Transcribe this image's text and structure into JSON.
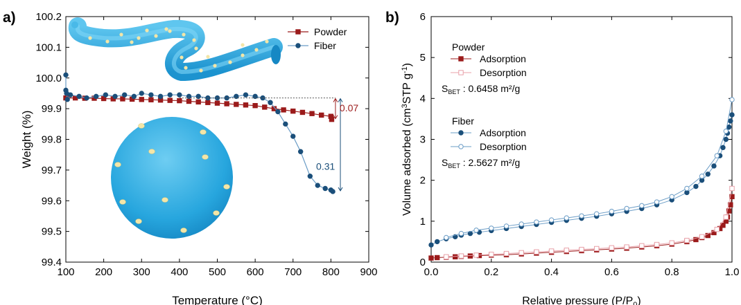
{
  "chart_data": [
    {
      "panel_label": "a)",
      "type": "line",
      "xlabel": "Temperature (°C)",
      "ylabel": "Weight (%)",
      "xlim": [
        100,
        900
      ],
      "ylim": [
        99.4,
        100.2
      ],
      "xticks": [
        100,
        200,
        300,
        400,
        500,
        600,
        700,
        800,
        900
      ],
      "yticks": [
        "99.4",
        "99.5",
        "99.6",
        "99.7",
        "99.8",
        "99.9",
        "100.0",
        "100.1",
        "100.2"
      ],
      "legend_position": "top-right",
      "colors": {
        "Powder": "#9b1b1b",
        "Fiber": "#1b4f7a",
        "Fiber_line": "#6a9cc6"
      },
      "series": [
        {
          "name": "Powder",
          "marker": "square",
          "x": [
            100,
            125,
            150,
            175,
            200,
            225,
            250,
            275,
            300,
            325,
            350,
            375,
            400,
            425,
            450,
            475,
            500,
            525,
            550,
            575,
            600,
            625,
            650,
            675,
            700,
            725,
            750,
            775,
            800,
            802
          ],
          "y": [
            99.935,
            99.935,
            99.934,
            99.934,
            99.933,
            99.932,
            99.932,
            99.931,
            99.93,
            99.929,
            99.928,
            99.927,
            99.926,
            99.924,
            99.922,
            99.92,
            99.918,
            99.916,
            99.914,
            99.912,
            99.91,
            99.905,
            99.9,
            99.896,
            99.892,
            99.888,
            99.884,
            99.879,
            99.875,
            99.865
          ]
        },
        {
          "name": "Fiber",
          "marker": "circle",
          "x": [
            100,
            100,
            102,
            104,
            112,
            135,
            155,
            180,
            205,
            230,
            255,
            280,
            300,
            325,
            350,
            375,
            400,
            425,
            450,
            475,
            500,
            525,
            550,
            575,
            600,
            620,
            640,
            660,
            680,
            700,
            720,
            745,
            765,
            785,
            800,
            805
          ],
          "y": [
            100.01,
            99.96,
            99.95,
            99.93,
            99.945,
            99.94,
            99.935,
            99.94,
            99.945,
            99.94,
            99.945,
            99.94,
            99.95,
            99.945,
            99.94,
            99.945,
            99.945,
            99.94,
            99.94,
            99.935,
            99.935,
            99.935,
            99.94,
            99.945,
            99.94,
            99.935,
            99.92,
            99.89,
            99.85,
            99.81,
            99.76,
            99.68,
            99.65,
            99.64,
            99.635,
            99.63
          ]
        }
      ],
      "annotations": [
        {
          "text": "0.07",
          "color": "#9b1b1b"
        },
        {
          "text": "0.31",
          "color": "#1b4f7a"
        }
      ]
    },
    {
      "panel_label": "b)",
      "type": "line",
      "xlabel": "Relative pressure (P/P",
      "xlabel_sub": "0",
      "xlabel_end": ")",
      "ylabel_parts": [
        "Volume adsorbed (cm",
        "3",
        "STP g",
        "-1",
        ")"
      ],
      "xlim": [
        0.0,
        1.0
      ],
      "ylim": [
        0,
        6
      ],
      "xticks": [
        "0.0",
        "0.2",
        "0.4",
        "0.6",
        "0.8",
        "1.0"
      ],
      "yticks": [
        "0",
        "1",
        "2",
        "3",
        "4",
        "5",
        "6"
      ],
      "colors": {
        "Powder": "#9b1b1b",
        "Powder_des": "#e8a0a8",
        "Fiber": "#1b4f7a",
        "Fiber_des": "#6a9cc6"
      },
      "legend_groups": [
        {
          "title": "Powder",
          "entries": [
            "Adsorption",
            "Desorption"
          ],
          "bet_label": "S",
          "bet_sub": "BET",
          "bet_value": " : 0.6458 m²/g"
        },
        {
          "title": "Fiber",
          "entries": [
            "Adsorption",
            "Desorption"
          ],
          "bet_label": "S",
          "bet_sub": "BET",
          "bet_value": " : 2.5627 m²/g"
        }
      ],
      "series": [
        {
          "name": "Powder Adsorption",
          "marker": "filled-square",
          "x": [
            0.0,
            0.02,
            0.05,
            0.08,
            0.1,
            0.13,
            0.16,
            0.2,
            0.25,
            0.3,
            0.35,
            0.4,
            0.45,
            0.5,
            0.55,
            0.6,
            0.65,
            0.7,
            0.75,
            0.8,
            0.85,
            0.88,
            0.9,
            0.92,
            0.94,
            0.96,
            0.97,
            0.98,
            0.985,
            0.99,
            0.995,
            1.0
          ],
          "y": [
            0.1,
            0.11,
            0.12,
            0.13,
            0.14,
            0.15,
            0.16,
            0.17,
            0.18,
            0.2,
            0.22,
            0.24,
            0.26,
            0.28,
            0.3,
            0.32,
            0.34,
            0.37,
            0.4,
            0.44,
            0.5,
            0.55,
            0.6,
            0.65,
            0.72,
            0.82,
            0.9,
            1.0,
            1.1,
            1.25,
            1.4,
            1.6
          ]
        },
        {
          "name": "Powder Desorption",
          "marker": "open-square",
          "x": [
            0.05,
            0.1,
            0.15,
            0.2,
            0.25,
            0.3,
            0.35,
            0.4,
            0.45,
            0.5,
            0.55,
            0.6,
            0.65,
            0.7,
            0.75,
            0.8,
            0.85,
            0.9,
            0.95,
            0.98,
            1.0
          ],
          "y": [
            0.13,
            0.15,
            0.17,
            0.19,
            0.21,
            0.23,
            0.25,
            0.27,
            0.29,
            0.31,
            0.33,
            0.35,
            0.37,
            0.4,
            0.43,
            0.47,
            0.53,
            0.62,
            0.8,
            1.1,
            1.8
          ]
        },
        {
          "name": "Fiber Adsorption",
          "marker": "filled-circle",
          "x": [
            0.0,
            0.02,
            0.05,
            0.08,
            0.1,
            0.13,
            0.16,
            0.2,
            0.25,
            0.3,
            0.35,
            0.4,
            0.45,
            0.5,
            0.55,
            0.6,
            0.65,
            0.7,
            0.75,
            0.8,
            0.85,
            0.88,
            0.9,
            0.92,
            0.94,
            0.96,
            0.97,
            0.98,
            0.985,
            0.99,
            0.995,
            1.0
          ],
          "y": [
            0.42,
            0.5,
            0.57,
            0.62,
            0.66,
            0.7,
            0.73,
            0.77,
            0.82,
            0.87,
            0.92,
            0.97,
            1.02,
            1.07,
            1.12,
            1.18,
            1.24,
            1.31,
            1.4,
            1.52,
            1.7,
            1.85,
            2.0,
            2.15,
            2.35,
            2.6,
            2.8,
            3.0,
            3.15,
            3.3,
            3.45,
            3.6
          ]
        },
        {
          "name": "Fiber Desorption",
          "marker": "open-circle",
          "x": [
            0.05,
            0.1,
            0.15,
            0.2,
            0.25,
            0.3,
            0.35,
            0.4,
            0.45,
            0.5,
            0.55,
            0.6,
            0.65,
            0.7,
            0.75,
            0.8,
            0.85,
            0.9,
            0.95,
            0.98,
            1.0
          ],
          "y": [
            0.6,
            0.7,
            0.78,
            0.83,
            0.88,
            0.93,
            0.98,
            1.03,
            1.08,
            1.13,
            1.18,
            1.24,
            1.31,
            1.38,
            1.47,
            1.6,
            1.8,
            2.1,
            2.6,
            3.2,
            3.97
          ]
        }
      ]
    }
  ]
}
